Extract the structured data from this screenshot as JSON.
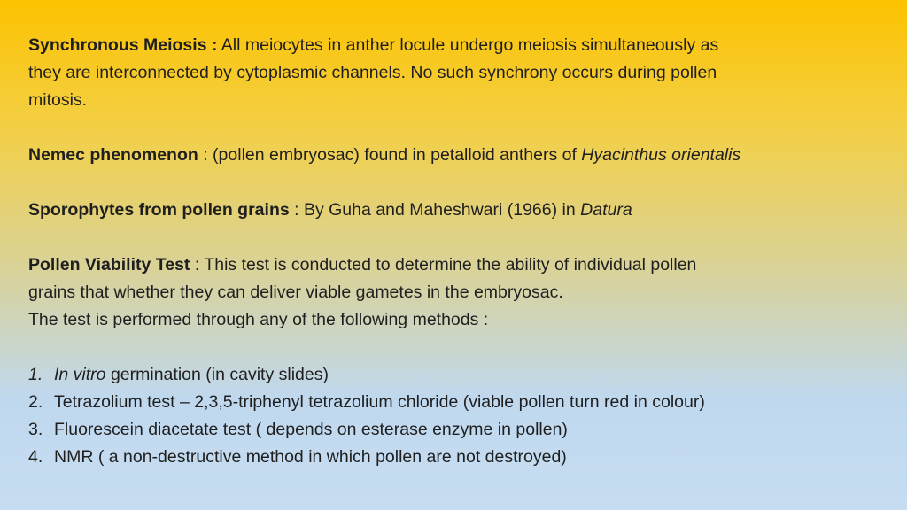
{
  "paragraphs": [
    {
      "lines": [
        [
          {
            "text": "Synchronous Meiosis :",
            "bold": true
          },
          {
            "text": " All meiocytes in anther locule undergo meiosis simultaneously as"
          }
        ],
        [
          {
            "text": "they are interconnected by cytoplasmic channels. No such synchrony occurs during pollen"
          }
        ],
        [
          {
            "text": "mitosis."
          }
        ]
      ]
    },
    {
      "lines": [
        [
          {
            "text": "Nemec phenomenon",
            "bold": true
          },
          {
            "text": " : (pollen embryosac) found in petalloid anthers of "
          },
          {
            "text": "Hyacinthus orientalis",
            "italic": true
          }
        ]
      ]
    },
    {
      "lines": [
        [
          {
            "text": "Sporophytes from pollen grains",
            "bold": true
          },
          {
            "text": " : By Guha and Maheshwari (1966) in "
          },
          {
            "text": "Datura",
            "italic": true
          }
        ]
      ]
    },
    {
      "lines": [
        [
          {
            "text": "Pollen Viability Test",
            "bold": true
          },
          {
            "text": " : This test is conducted to determine the ability of individual pollen"
          }
        ],
        [
          {
            "text": "grains that whether they can deliver viable gametes in the embryosac."
          }
        ],
        [
          {
            "text": "The test is performed through any of the following methods :"
          }
        ]
      ]
    }
  ],
  "list": [
    {
      "marker": "1.",
      "italic": true,
      "segments": [
        {
          "text": "In vitro",
          "italic": true
        },
        {
          "text": " germination (in cavity slides)"
        }
      ]
    },
    {
      "marker": "2.",
      "segments": [
        {
          "text": "Tetrazolium test – 2,3,5-triphenyl tetrazolium chloride (viable pollen turn red in colour)"
        }
      ]
    },
    {
      "marker": "3.",
      "segments": [
        {
          "text": "Fluorescein diacetate test ( depends on esterase enzyme in pollen)"
        }
      ]
    },
    {
      "marker": "4.",
      "segments": [
        {
          "text": "NMR ( a non-destructive method in which pollen are not destroyed)"
        }
      ]
    }
  ]
}
